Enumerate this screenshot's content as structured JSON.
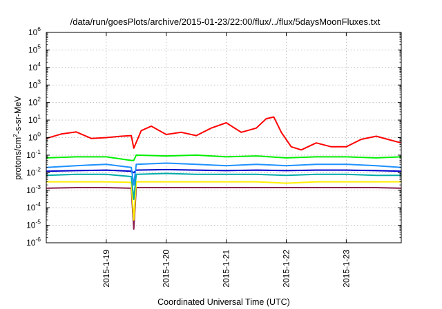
{
  "chart_data": {
    "type": "line",
    "title": "/data/run/goesPlots/archive/2015-01-23/22:00/flux/../flux/5daysMoonFluxes.txt",
    "xlabel": "Coordinated Universal Time (UTC)",
    "ylabel": "protons/cm2-s-sr-MeV",
    "ylabel_parts": {
      "base": "protons/cm",
      "sup": "2",
      "rest": "-s-sr-MeV"
    },
    "yscale": "log",
    "ylim": [
      1e-06,
      1000000.0
    ],
    "xlim": [
      "2015-01-18 00:00",
      "2015-01-23 22:00"
    ],
    "x_ticks": [
      "2015-1-19",
      "2015-1-20",
      "2015-1-21",
      "2015-1-22",
      "2015-1-23"
    ],
    "y_ticks": [
      {
        "base": "10",
        "exp": "-6",
        "value": 1e-06
      },
      {
        "base": "10",
        "exp": "-5",
        "value": 1e-05
      },
      {
        "base": "10",
        "exp": "-4",
        "value": 0.0001
      },
      {
        "base": "10",
        "exp": "-3",
        "value": 0.001
      },
      {
        "base": "10",
        "exp": "-2",
        "value": 0.01
      },
      {
        "base": "10",
        "exp": "-1",
        "value": 0.1
      },
      {
        "base": "10",
        "exp": "0",
        "value": 1
      },
      {
        "base": "10",
        "exp": "1",
        "value": 10.0
      },
      {
        "base": "10",
        "exp": "2",
        "value": 100.0
      },
      {
        "base": "10",
        "exp": "3",
        "value": 1000.0
      },
      {
        "base": "10",
        "exp": "4",
        "value": 10000.0
      },
      {
        "base": "10",
        "exp": "5",
        "value": 100000.0
      },
      {
        "base": "10",
        "exp": "6",
        "value": 1000000.0
      }
    ],
    "grid": true,
    "series": [
      {
        "color": "#ff0000",
        "x": [
          "2015-01-18 00:00",
          "2015-01-18 06:00",
          "2015-01-18 12:00",
          "2015-01-18 18:00",
          "2015-01-19 00:00",
          "2015-01-19 06:00",
          "2015-01-19 10:00",
          "2015-01-19 11:00",
          "2015-01-19 14:00",
          "2015-01-19 18:00",
          "2015-01-20 00:00",
          "2015-01-20 06:00",
          "2015-01-20 12:00",
          "2015-01-20 18:00",
          "2015-01-21 00:00",
          "2015-01-21 06:00",
          "2015-01-21 12:00",
          "2015-01-21 16:00",
          "2015-01-21 19:00",
          "2015-01-21 22:00",
          "2015-01-22 02:00",
          "2015-01-22 06:00",
          "2015-01-22 12:00",
          "2015-01-22 18:00",
          "2015-01-23 00:00",
          "2015-01-23 06:00",
          "2015-01-23 12:00",
          "2015-01-23 18:00",
          "2015-01-23 22:00"
        ],
        "y": [
          0.9,
          1.6,
          2.1,
          0.9,
          1.0,
          1.2,
          1.3,
          0.25,
          2.5,
          4.5,
          1.5,
          2.0,
          1.3,
          3.5,
          7.0,
          2.0,
          3.5,
          12.0,
          15.0,
          2.0,
          0.3,
          0.2,
          0.5,
          0.3,
          0.3,
          0.8,
          1.2,
          0.7,
          0.5
        ]
      },
      {
        "color": "#00ee00",
        "x": [
          "2015-01-18 00:00",
          "2015-01-18 12:00",
          "2015-01-19 00:00",
          "2015-01-19 10:00",
          "2015-01-19 11:00",
          "2015-01-19 12:00",
          "2015-01-20 00:00",
          "2015-01-20 12:00",
          "2015-01-21 00:00",
          "2015-01-21 12:00",
          "2015-01-22 00:00",
          "2015-01-22 12:00",
          "2015-01-23 00:00",
          "2015-01-23 12:00",
          "2015-01-23 22:00"
        ],
        "y": [
          0.07,
          0.08,
          0.08,
          0.05,
          0.05,
          0.1,
          0.09,
          0.1,
          0.08,
          0.09,
          0.07,
          0.08,
          0.08,
          0.07,
          0.08
        ]
      },
      {
        "color": "#1e90ff",
        "x": [
          "2015-01-18 00:00",
          "2015-01-18 12:00",
          "2015-01-19 00:00",
          "2015-01-19 10:00",
          "2015-01-19 11:00",
          "2015-01-19 12:00",
          "2015-01-20 00:00",
          "2015-01-20 12:00",
          "2015-01-21 00:00",
          "2015-01-21 12:00",
          "2015-01-22 00:00",
          "2015-01-22 12:00",
          "2015-01-23 00:00",
          "2015-01-23 12:00",
          "2015-01-23 22:00"
        ],
        "y": [
          0.02,
          0.025,
          0.03,
          0.02,
          0.002,
          0.03,
          0.035,
          0.03,
          0.025,
          0.03,
          0.025,
          0.03,
          0.03,
          0.025,
          0.02
        ]
      },
      {
        "color": "#0000cc",
        "x": [
          "2015-01-18 00:00",
          "2015-01-18 12:00",
          "2015-01-19 00:00",
          "2015-01-19 10:00",
          "2015-01-19 11:00",
          "2015-01-19 12:00",
          "2015-01-20 00:00",
          "2015-01-20 12:00",
          "2015-01-21 00:00",
          "2015-01-21 12:00",
          "2015-01-22 00:00",
          "2015-01-22 12:00",
          "2015-01-23 00:00",
          "2015-01-23 12:00",
          "2015-01-23 22:00"
        ],
        "y": [
          0.012,
          0.013,
          0.014,
          0.012,
          0.01,
          0.014,
          0.015,
          0.014,
          0.013,
          0.014,
          0.013,
          0.014,
          0.014,
          0.013,
          0.012
        ]
      },
      {
        "color": "#00aaaa",
        "x": [
          "2015-01-18 00:00",
          "2015-01-18 12:00",
          "2015-01-19 00:00",
          "2015-01-19 10:00",
          "2015-01-19 11:00",
          "2015-01-19 12:00",
          "2015-01-20 00:00",
          "2015-01-20 12:00",
          "2015-01-21 00:00",
          "2015-01-21 12:00",
          "2015-01-22 00:00",
          "2015-01-22 12:00",
          "2015-01-23 00:00",
          "2015-01-23 12:00",
          "2015-01-23 22:00"
        ],
        "y": [
          0.007,
          0.008,
          0.008,
          0.006,
          0.0003,
          0.008,
          0.009,
          0.008,
          0.008,
          0.008,
          0.007,
          0.008,
          0.008,
          0.007,
          0.007
        ]
      },
      {
        "color": "#ffee00",
        "x": [
          "2015-01-18 00:00",
          "2015-01-18 12:00",
          "2015-01-19 00:00",
          "2015-01-19 10:00",
          "2015-01-19 11:00",
          "2015-01-19 12:00",
          "2015-01-20 00:00",
          "2015-01-20 12:00",
          "2015-01-21 00:00",
          "2015-01-21 12:00",
          "2015-01-22 00:00",
          "2015-01-22 12:00",
          "2015-01-23 00:00",
          "2015-01-23 12:00",
          "2015-01-23 22:00"
        ],
        "y": [
          0.003,
          0.003,
          0.003,
          0.0028,
          2e-05,
          0.003,
          0.003,
          0.003,
          0.003,
          0.003,
          0.0025,
          0.003,
          0.003,
          0.003,
          0.003
        ]
      },
      {
        "color": "#8b2252",
        "x": [
          "2015-01-18 00:00",
          "2015-01-18 12:00",
          "2015-01-19 00:00",
          "2015-01-19 10:00",
          "2015-01-19 11:00",
          "2015-01-19 12:00",
          "2015-01-20 00:00",
          "2015-01-20 12:00",
          "2015-01-21 00:00",
          "2015-01-21 12:00",
          "2015-01-22 00:00",
          "2015-01-22 12:00",
          "2015-01-23 00:00",
          "2015-01-23 12:00",
          "2015-01-23 22:00"
        ],
        "y": [
          0.0013,
          0.0014,
          0.0014,
          0.0013,
          6e-06,
          0.0014,
          0.0014,
          0.0014,
          0.0014,
          0.0014,
          0.0014,
          0.0014,
          0.0014,
          0.0014,
          0.0013
        ]
      }
    ]
  }
}
